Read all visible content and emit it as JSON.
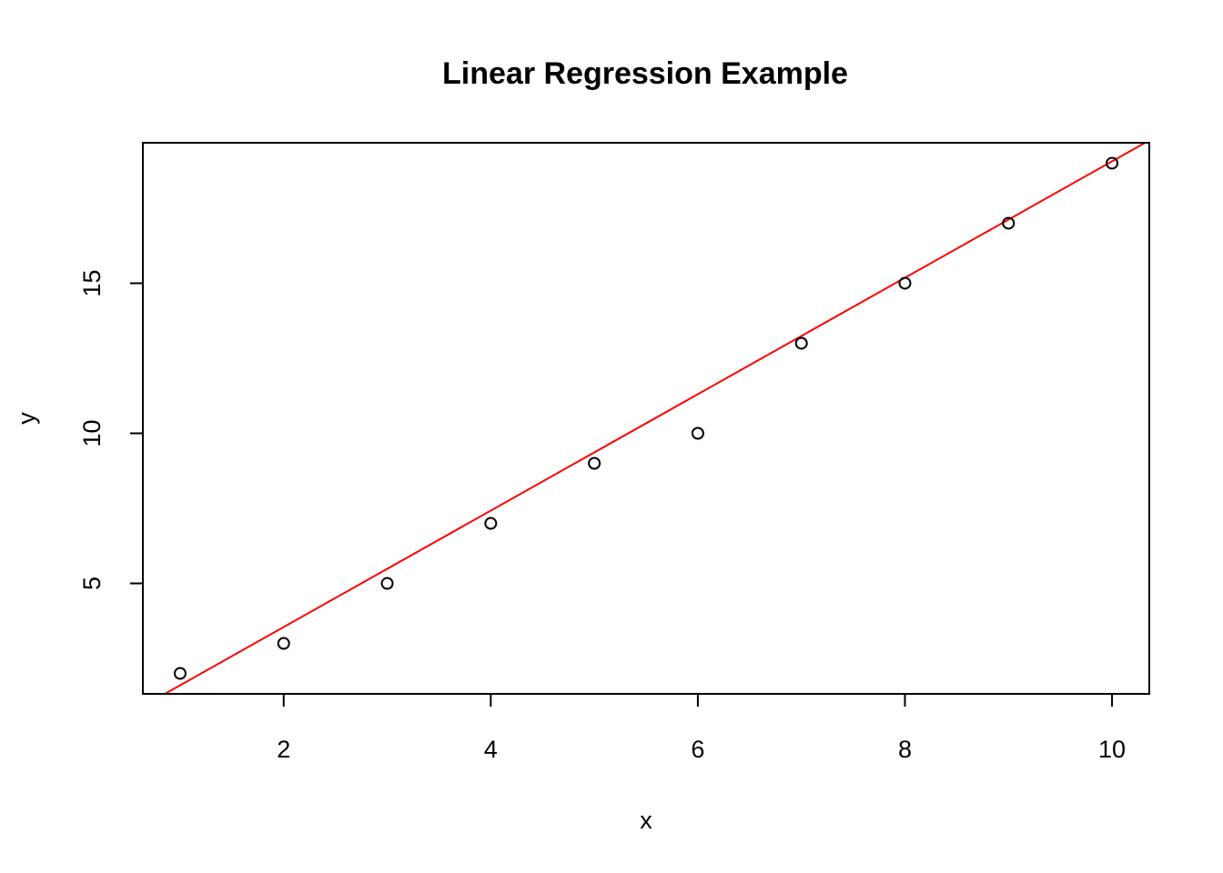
{
  "chart_data": {
    "type": "scatter",
    "title": "Linear Regression Example",
    "xlabel": "x",
    "ylabel": "y",
    "xlim": [
      0.64,
      10.36
    ],
    "ylim": [
      1.32,
      19.68
    ],
    "x_ticks": [
      2,
      4,
      6,
      8,
      10
    ],
    "y_ticks": [
      5,
      10,
      15
    ],
    "points": {
      "x": [
        1,
        2,
        3,
        4,
        5,
        6,
        7,
        8,
        9,
        10
      ],
      "y": [
        2,
        3,
        5,
        7,
        9,
        10,
        13,
        15,
        17,
        19
      ]
    },
    "fit_line": {
      "intercept": -0.3333,
      "slope": 1.9394
    },
    "grid": false,
    "legend": "none",
    "colors": {
      "points": "#000000",
      "fit_line": "#ff0000",
      "frame": "#000000"
    }
  }
}
